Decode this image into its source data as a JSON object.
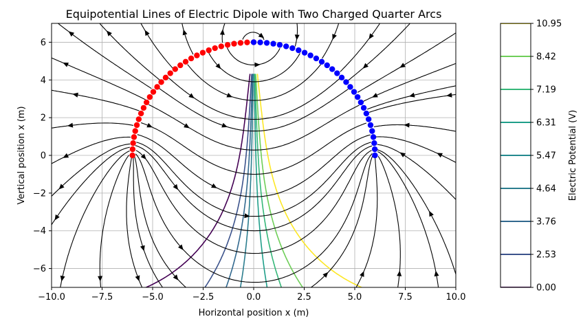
{
  "chart_data": {
    "type": "contour",
    "title": "Equipotential Lines of Electric Dipole with Two Charged Quarter Arcs",
    "xlabel": "Horizontal position x (m)",
    "ylabel": "Vertical position x (m)",
    "xlim": [
      -10,
      10
    ],
    "ylim": [
      -7,
      7
    ],
    "x_ticks": [
      -10,
      -7.5,
      -5,
      -2.5,
      0,
      2.5,
      5,
      7.5,
      10
    ],
    "x_tick_labels": [
      "−10.0",
      "−7.5",
      "−5.0",
      "−2.5",
      "0.0",
      "2.5",
      "5.0",
      "7.5",
      "10.0"
    ],
    "y_ticks": [
      -6,
      -4,
      -2,
      0,
      2,
      4,
      6
    ],
    "y_tick_labels": [
      "−6",
      "−4",
      "−2",
      "0",
      "2",
      "4",
      "6"
    ],
    "grid": true,
    "charges": {
      "positive_arc": {
        "color": "#ff0000",
        "center": [
          0,
          0
        ],
        "radius": 6,
        "quadrant": "upper-left",
        "points": 30
      },
      "negative_arc": {
        "color": "#0000ff",
        "center": [
          0,
          0
        ],
        "radius": 6,
        "quadrant": "upper-right",
        "points": 30
      }
    },
    "streamlines": {
      "color": "#000000",
      "description": "electric field streamlines with arrowheads"
    },
    "colorbar": {
      "label": "Electric Potential (V)",
      "levels": [
        0.0,
        2.53,
        3.76,
        4.64,
        5.47,
        6.31,
        7.19,
        8.42,
        10.95
      ],
      "tick_labels": [
        "0.00",
        "2.53",
        "3.76",
        "4.64",
        "5.47",
        "6.31",
        "7.19",
        "8.42",
        "10.95"
      ],
      "colors": [
        "#440154",
        "#3b528b",
        "#31688e",
        "#2b7d8e",
        "#23898e",
        "#1f9e89",
        "#35b779",
        "#6ece58",
        "#fde725"
      ],
      "colormap": "viridis"
    }
  }
}
